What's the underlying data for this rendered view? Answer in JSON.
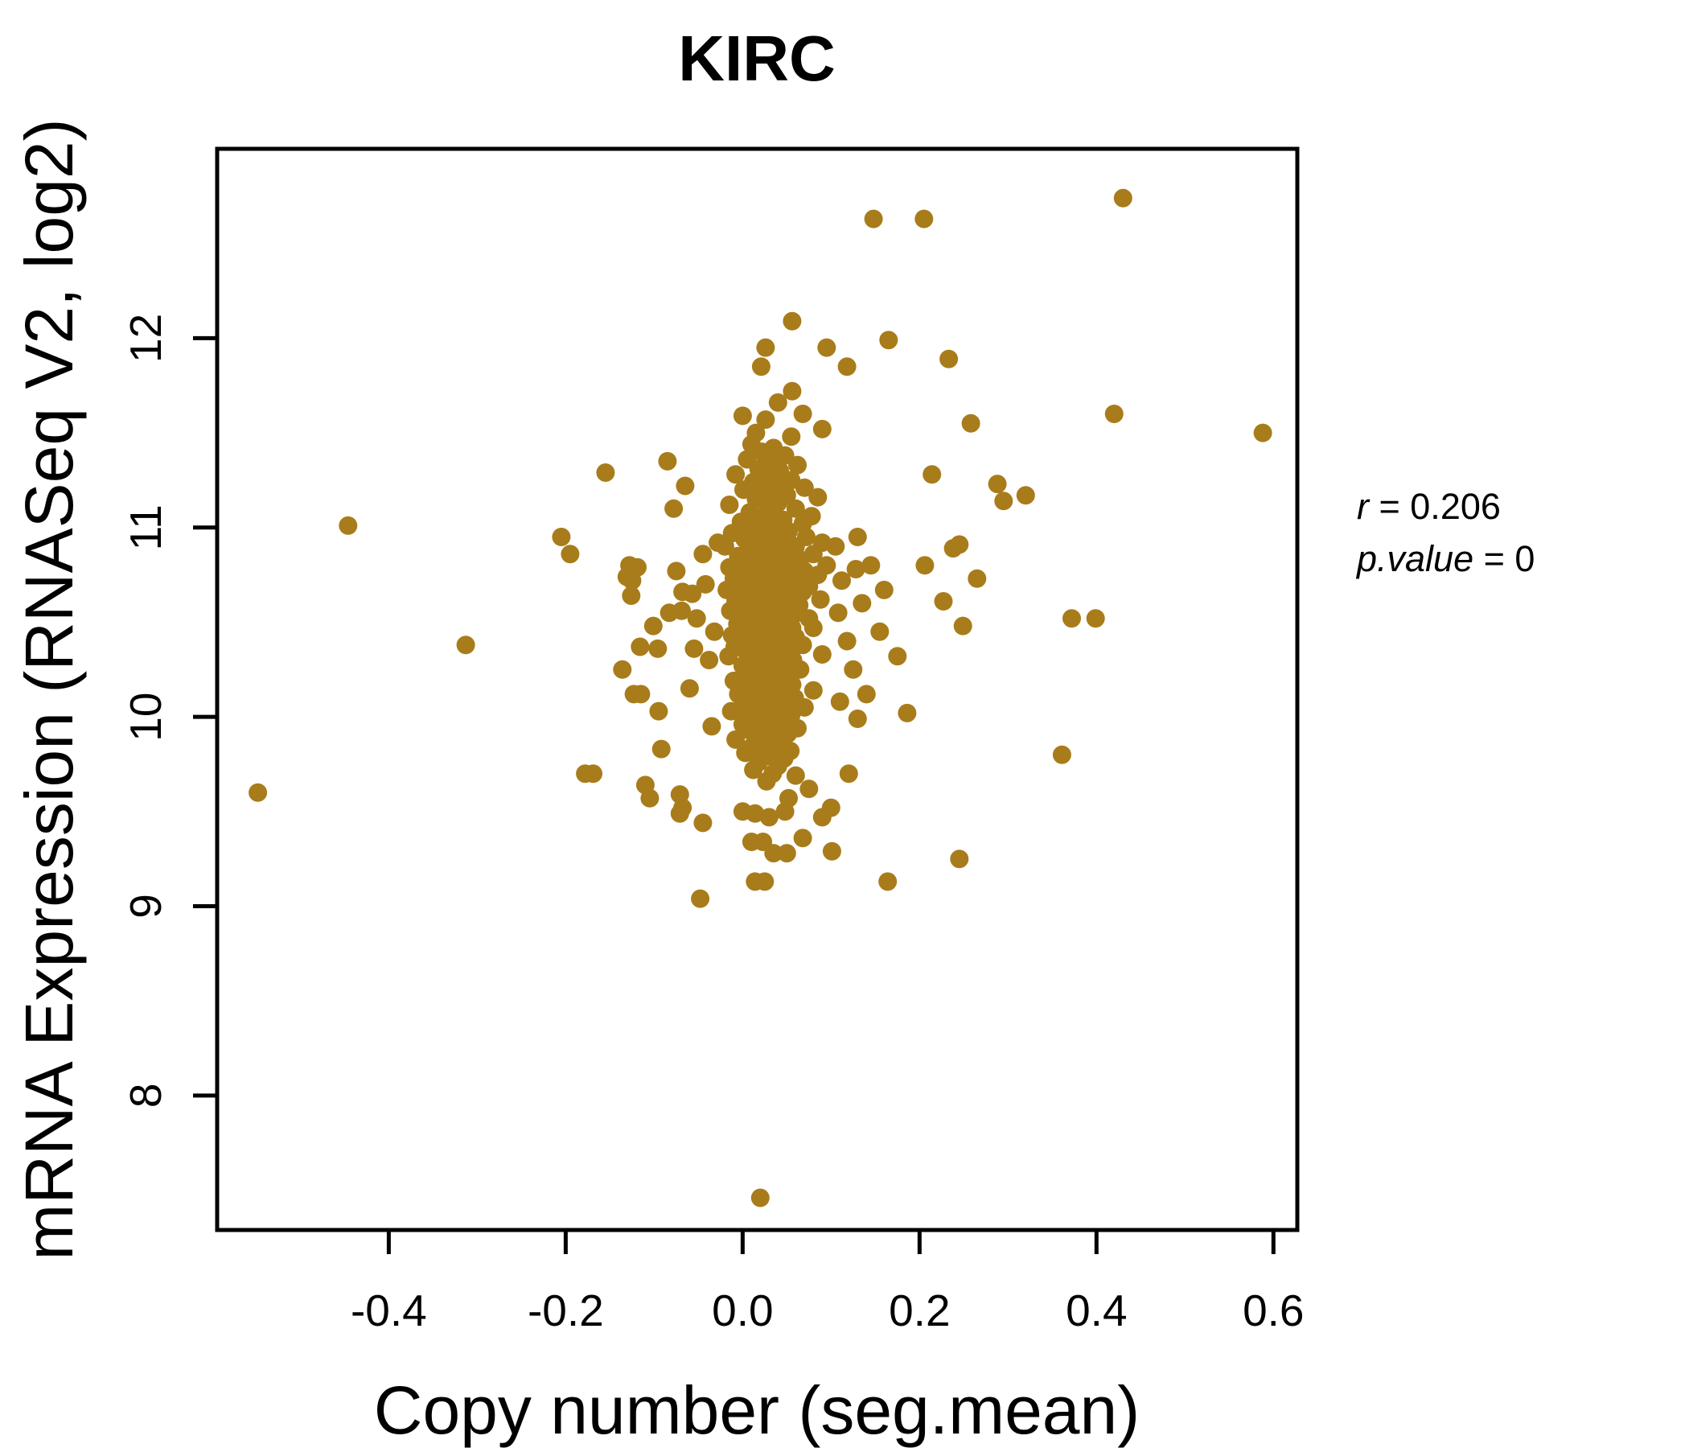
{
  "chart_data": {
    "type": "scatter",
    "title": "KIRC",
    "title_color": "#A87C1B",
    "xlabel": "Copy number (seg.mean)",
    "ylabel": "mRNA Expression (RNASeq V2, log2)",
    "x_tick_values": [
      -0.4,
      -0.2,
      0.0,
      0.2,
      0.4,
      0.6
    ],
    "x_tick_labels": [
      "-0.4",
      "-0.2",
      "0.0",
      "0.2",
      "0.4",
      "0.6"
    ],
    "y_tick_values": [
      8,
      9,
      10,
      11,
      12
    ],
    "y_tick_labels": [
      "8",
      "9",
      "10",
      "11",
      "12"
    ],
    "xlim": [
      -0.594,
      0.627
    ],
    "ylim": [
      7.29,
      13.0
    ],
    "grid": false,
    "legend": "none",
    "point_color": "#A87C1B",
    "point_radius_px": 11.5,
    "correlation_r": 0.206,
    "p_value": 0,
    "annotation": {
      "r_var": "r",
      "r_eq": " = 0.206",
      "p_var": "p.value",
      "p_eq": " = 0"
    },
    "points": [
      [
        -0.548,
        9.6
      ],
      [
        -0.446,
        11.01
      ],
      [
        -0.313,
        10.38
      ],
      [
        -0.205,
        10.95
      ],
      [
        -0.155,
        11.29
      ],
      [
        -0.195,
        10.86
      ],
      [
        -0.178,
        9.7
      ],
      [
        -0.169,
        9.7
      ],
      [
        -0.136,
        10.25
      ],
      [
        -0.131,
        10.74
      ],
      [
        -0.128,
        10.8
      ],
      [
        -0.123,
        10.12
      ],
      [
        -0.119,
        10.79
      ],
      [
        -0.116,
        10.37
      ],
      [
        -0.115,
        10.12
      ],
      [
        -0.11,
        9.64
      ],
      [
        -0.105,
        9.57
      ],
      [
        -0.101,
        10.48
      ],
      [
        -0.096,
        10.36
      ],
      [
        -0.095,
        10.03
      ],
      [
        -0.092,
        9.83
      ],
      [
        -0.083,
        10.55
      ],
      [
        -0.075,
        10.77
      ],
      [
        -0.071,
        9.59
      ],
      [
        -0.069,
        10.56
      ],
      [
        -0.068,
        9.52
      ],
      [
        -0.068,
        10.66
      ],
      [
        -0.057,
        10.65
      ],
      [
        -0.055,
        10.36
      ],
      [
        -0.048,
        9.04
      ],
      [
        -0.045,
        9.44
      ],
      [
        -0.125,
        10.72
      ],
      [
        -0.126,
        10.64
      ],
      [
        0.148,
        12.63
      ],
      [
        0.205,
        12.63
      ],
      [
        0.43,
        12.74
      ],
      [
        0.056,
        12.09
      ],
      [
        0.026,
        11.95
      ],
      [
        0.021,
        11.85
      ],
      [
        0.095,
        11.95
      ],
      [
        0.118,
        11.85
      ],
      [
        0.165,
        11.99
      ],
      [
        0.233,
        11.89
      ],
      [
        0.056,
        11.72
      ],
      [
        0.0,
        11.59
      ],
      [
        0.026,
        11.57
      ],
      [
        0.258,
        11.55
      ],
      [
        0.42,
        11.6
      ],
      [
        0.588,
        11.5
      ],
      [
        0.288,
        11.23
      ],
      [
        0.295,
        11.14
      ],
      [
        0.32,
        11.17
      ],
      [
        0.238,
        10.89
      ],
      [
        0.245,
        10.91
      ],
      [
        0.206,
        10.8
      ],
      [
        0.265,
        10.73
      ],
      [
        0.227,
        10.61
      ],
      [
        0.249,
        10.48
      ],
      [
        0.372,
        10.52
      ],
      [
        0.399,
        10.52
      ],
      [
        0.361,
        9.8
      ],
      [
        0.245,
        9.25
      ],
      [
        0.164,
        9.13
      ],
      [
        0.101,
        9.29
      ],
      [
        0.1,
        9.52
      ],
      [
        0.025,
        9.13
      ],
      [
        0.014,
        9.13
      ],
      [
        0.02,
        7.46
      ],
      [
        0.214,
        11.28
      ],
      [
        -0.071,
        9.49
      ],
      [
        0.0,
        9.5
      ],
      [
        0.014,
        9.49
      ],
      [
        0.03,
        9.47
      ],
      [
        0.048,
        9.5
      ],
      [
        0.01,
        9.34
      ],
      [
        0.023,
        9.34
      ],
      [
        0.035,
        9.28
      ],
      [
        0.05,
        9.28
      ],
      [
        0.13,
        10.95
      ],
      [
        0.145,
        10.8
      ],
      [
        0.16,
        10.67
      ],
      [
        0.155,
        10.45
      ],
      [
        0.175,
        10.32
      ],
      [
        0.14,
        10.12
      ],
      [
        0.13,
        9.99
      ],
      [
        0.186,
        10.02
      ],
      [
        0.12,
        9.7
      ],
      [
        0.105,
        10.9
      ],
      [
        0.112,
        10.72
      ],
      [
        0.108,
        10.55
      ],
      [
        0.118,
        10.4
      ],
      [
        0.125,
        10.25
      ],
      [
        0.11,
        10.08
      ],
      [
        0.135,
        10.6
      ],
      [
        0.128,
        10.78
      ],
      [
        0.04,
        11.66
      ],
      [
        0.068,
        11.6
      ],
      [
        0.09,
        11.52
      ],
      [
        0.015,
        11.5
      ],
      [
        0.055,
        11.48
      ],
      [
        -0.045,
        10.86
      ],
      [
        -0.052,
        10.52
      ],
      [
        -0.038,
        10.3
      ],
      [
        -0.06,
        10.15
      ],
      [
        -0.035,
        9.95
      ],
      [
        -0.028,
        10.92
      ],
      [
        -0.032,
        10.45
      ],
      [
        -0.042,
        10.7
      ],
      [
        -0.085,
        11.35
      ],
      [
        -0.065,
        11.22
      ],
      [
        -0.078,
        11.1
      ],
      [
        0.075,
        9.62
      ],
      [
        0.052,
        9.57
      ],
      [
        0.068,
        9.36
      ],
      [
        0.09,
        9.47
      ],
      [
        0.01,
        11.44
      ],
      [
        0.035,
        11.42
      ],
      [
        0.022,
        11.4
      ],
      [
        0.048,
        11.38
      ],
      [
        0.005,
        11.36
      ],
      [
        0.03,
        11.35
      ],
      [
        0.062,
        11.33
      ],
      [
        0.018,
        11.31
      ],
      [
        0.042,
        11.3
      ],
      [
        -0.008,
        11.28
      ],
      [
        0.027,
        11.27
      ],
      [
        0.055,
        11.25
      ],
      [
        0.012,
        11.24
      ],
      [
        0.038,
        11.22
      ],
      [
        0.07,
        11.21
      ],
      [
        0.001,
        11.2
      ],
      [
        0.025,
        11.18
      ],
      [
        0.05,
        11.17
      ],
      [
        0.085,
        11.16
      ],
      [
        0.015,
        11.15
      ],
      [
        0.04,
        11.13
      ],
      [
        -0.015,
        11.12
      ],
      [
        0.028,
        11.11
      ],
      [
        0.06,
        11.1
      ],
      [
        0.008,
        11.08
      ],
      [
        0.033,
        11.07
      ],
      [
        0.078,
        11.06
      ],
      [
        0.02,
        11.05
      ],
      [
        0.046,
        11.04
      ],
      [
        -0.002,
        11.03
      ],
      [
        0.068,
        11.02
      ],
      [
        0.03,
        11.01
      ],
      [
        0.005,
        11.0
      ],
      [
        0.028,
        10.99
      ],
      [
        0.052,
        10.98
      ],
      [
        -0.012,
        10.97
      ],
      [
        0.018,
        10.97
      ],
      [
        0.04,
        10.96
      ],
      [
        0.072,
        10.95
      ],
      [
        0.002,
        10.94
      ],
      [
        0.025,
        10.94
      ],
      [
        0.048,
        10.93
      ],
      [
        0.09,
        10.92
      ],
      [
        0.012,
        10.92
      ],
      [
        0.035,
        10.91
      ],
      [
        0.06,
        10.9
      ],
      [
        -0.02,
        10.9
      ],
      [
        0.022,
        10.89
      ],
      [
        0.045,
        10.88
      ],
      [
        0.008,
        10.88
      ],
      [
        0.03,
        10.87
      ],
      [
        0.055,
        10.86
      ],
      [
        0.08,
        10.86
      ],
      [
        -0.005,
        10.85
      ],
      [
        0.018,
        10.85
      ],
      [
        0.042,
        10.84
      ],
      [
        0.065,
        10.83
      ],
      [
        0.028,
        10.83
      ],
      [
        0.001,
        10.82
      ],
      [
        0.05,
        10.82
      ],
      [
        0.015,
        10.81
      ],
      [
        0.038,
        10.8
      ],
      [
        0.095,
        10.8
      ],
      [
        -0.015,
        10.79
      ],
      [
        0.024,
        10.79
      ],
      [
        0.058,
        10.78
      ],
      [
        0.01,
        10.78
      ],
      [
        0.033,
        10.77
      ],
      [
        0.07,
        10.77
      ],
      [
        0.003,
        10.76
      ],
      [
        0.027,
        10.76
      ],
      [
        0.047,
        10.75
      ],
      [
        0.085,
        10.75
      ],
      [
        0.02,
        10.74
      ],
      [
        0.04,
        10.74
      ],
      [
        -0.01,
        10.73
      ],
      [
        0.013,
        10.73
      ],
      [
        0.036,
        10.72
      ],
      [
        0.062,
        10.72
      ],
      [
        0.006,
        10.71
      ],
      [
        0.029,
        10.71
      ],
      [
        0.052,
        10.7
      ],
      [
        0.075,
        10.69
      ],
      [
        0.0,
        10.69
      ],
      [
        0.023,
        10.68
      ],
      [
        0.045,
        10.68
      ],
      [
        -0.018,
        10.67
      ],
      [
        0.016,
        10.67
      ],
      [
        0.038,
        10.66
      ],
      [
        0.068,
        10.66
      ],
      [
        0.009,
        10.65
      ],
      [
        0.031,
        10.65
      ],
      [
        0.055,
        10.64
      ],
      [
        0.002,
        10.64
      ],
      [
        0.026,
        10.63
      ],
      [
        0.048,
        10.63
      ],
      [
        0.088,
        10.62
      ],
      [
        0.019,
        10.62
      ],
      [
        0.041,
        10.61
      ],
      [
        -0.008,
        10.61
      ],
      [
        0.012,
        10.6
      ],
      [
        0.034,
        10.6
      ],
      [
        0.064,
        10.59
      ],
      [
        0.005,
        10.59
      ],
      [
        0.028,
        10.58
      ],
      [
        0.05,
        10.58
      ],
      [
        0.021,
        10.57
      ],
      [
        0.043,
        10.56
      ],
      [
        -0.014,
        10.56
      ],
      [
        0.015,
        10.55
      ],
      [
        0.037,
        10.55
      ],
      [
        0.058,
        10.54
      ],
      [
        0.008,
        10.53
      ],
      [
        0.03,
        10.53
      ],
      [
        0.075,
        10.52
      ],
      [
        0.001,
        10.52
      ],
      [
        0.024,
        10.51
      ],
      [
        0.046,
        10.51
      ],
      [
        0.017,
        10.5
      ],
      [
        0.039,
        10.49
      ],
      [
        -0.006,
        10.49
      ],
      [
        0.011,
        10.48
      ],
      [
        0.033,
        10.48
      ],
      [
        0.056,
        10.47
      ],
      [
        0.08,
        10.47
      ],
      [
        0.004,
        10.46
      ],
      [
        0.026,
        10.46
      ],
      [
        0.049,
        10.45
      ],
      [
        0.02,
        10.44
      ],
      [
        0.042,
        10.44
      ],
      [
        -0.012,
        10.43
      ],
      [
        0.014,
        10.43
      ],
      [
        0.036,
        10.42
      ],
      [
        0.06,
        10.42
      ],
      [
        0.007,
        10.41
      ],
      [
        0.029,
        10.41
      ],
      [
        0.052,
        10.4
      ],
      [
        0.0,
        10.4
      ],
      [
        0.022,
        10.39
      ],
      [
        0.044,
        10.39
      ],
      [
        0.068,
        10.38
      ],
      [
        0.016,
        10.38
      ],
      [
        0.038,
        10.37
      ],
      [
        -0.009,
        10.37
      ],
      [
        0.01,
        10.36
      ],
      [
        0.032,
        10.36
      ],
      [
        0.054,
        10.35
      ],
      [
        0.003,
        10.35
      ],
      [
        0.025,
        10.34
      ],
      [
        0.047,
        10.34
      ],
      [
        0.09,
        10.33
      ],
      [
        0.019,
        10.33
      ],
      [
        0.041,
        10.32
      ],
      [
        -0.016,
        10.32
      ],
      [
        0.013,
        10.31
      ],
      [
        0.035,
        10.31
      ],
      [
        0.057,
        10.3
      ],
      [
        0.006,
        10.3
      ],
      [
        0.028,
        10.29
      ],
      [
        0.05,
        10.29
      ],
      [
        0.021,
        10.28
      ],
      [
        0.043,
        10.27
      ],
      [
        0.0,
        10.27
      ],
      [
        0.015,
        10.26
      ],
      [
        0.037,
        10.26
      ],
      [
        0.065,
        10.25
      ],
      [
        0.009,
        10.25
      ],
      [
        0.031,
        10.24
      ],
      [
        0.053,
        10.23
      ],
      [
        0.002,
        10.23
      ],
      [
        0.024,
        10.22
      ],
      [
        0.046,
        10.21
      ],
      [
        0.018,
        10.2
      ],
      [
        0.04,
        10.19
      ],
      [
        -0.01,
        10.19
      ],
      [
        0.012,
        10.18
      ],
      [
        0.034,
        10.17
      ],
      [
        0.056,
        10.17
      ],
      [
        0.005,
        10.16
      ],
      [
        0.027,
        10.15
      ],
      [
        0.049,
        10.15
      ],
      [
        0.08,
        10.14
      ],
      [
        0.021,
        10.13
      ],
      [
        0.043,
        10.12
      ],
      [
        -0.005,
        10.12
      ],
      [
        0.015,
        10.11
      ],
      [
        0.037,
        10.1
      ],
      [
        0.059,
        10.1
      ],
      [
        0.008,
        10.09
      ],
      [
        0.03,
        10.08
      ],
      [
        0.052,
        10.08
      ],
      [
        0.001,
        10.07
      ],
      [
        0.023,
        10.06
      ],
      [
        0.045,
        10.06
      ],
      [
        0.07,
        10.05
      ],
      [
        0.017,
        10.04
      ],
      [
        0.039,
        10.03
      ],
      [
        -0.013,
        10.03
      ],
      [
        0.011,
        10.02
      ],
      [
        0.033,
        10.01
      ],
      [
        0.055,
        10.01
      ],
      [
        0.004,
        10.0
      ],
      [
        0.026,
        9.99
      ],
      [
        0.048,
        9.99
      ],
      [
        0.019,
        9.98
      ],
      [
        0.041,
        9.97
      ],
      [
        0.0,
        9.96
      ],
      [
        0.013,
        9.95
      ],
      [
        0.035,
        9.95
      ],
      [
        0.062,
        9.94
      ],
      [
        0.007,
        9.93
      ],
      [
        0.029,
        9.92
      ],
      [
        0.051,
        9.91
      ],
      [
        0.022,
        9.9
      ],
      [
        0.044,
        9.89
      ],
      [
        -0.008,
        9.88
      ],
      [
        0.016,
        9.87
      ],
      [
        0.038,
        9.86
      ],
      [
        0.01,
        9.84
      ],
      [
        0.032,
        9.83
      ],
      [
        0.054,
        9.82
      ],
      [
        0.003,
        9.81
      ],
      [
        0.025,
        9.79
      ],
      [
        0.047,
        9.78
      ],
      [
        0.018,
        9.76
      ],
      [
        0.04,
        9.74
      ],
      [
        0.012,
        9.72
      ],
      [
        0.034,
        9.7
      ],
      [
        0.06,
        9.69
      ],
      [
        0.027,
        9.66
      ]
    ]
  }
}
